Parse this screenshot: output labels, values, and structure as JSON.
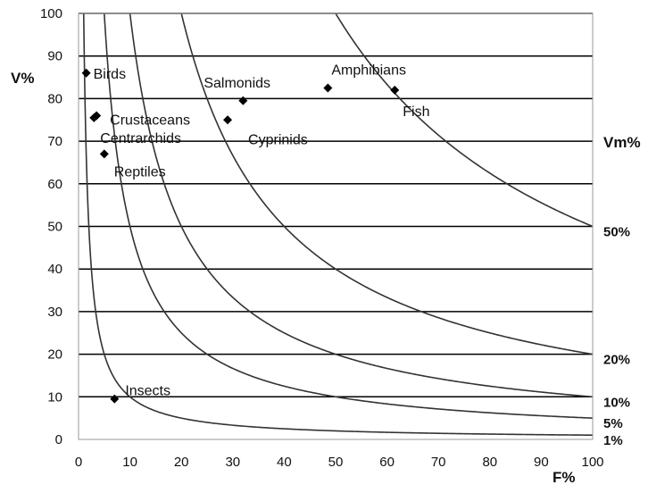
{
  "chart_data": {
    "type": "scatter",
    "xlabel": "F%",
    "ylabel": "V%",
    "right_label": "Vm%",
    "xlim": [
      0,
      100
    ],
    "ylim": [
      0,
      100
    ],
    "x_ticks": [
      0,
      10,
      20,
      30,
      40,
      50,
      60,
      70,
      80,
      90,
      100
    ],
    "y_ticks": [
      0,
      10,
      20,
      30,
      40,
      50,
      60,
      70,
      80,
      90,
      100
    ],
    "grid": "horizontal",
    "curves": [
      {
        "label": "50%",
        "vm": 50
      },
      {
        "label": "20%",
        "vm": 20
      },
      {
        "label": "10%",
        "vm": 10
      },
      {
        "label": "5%",
        "vm": 5
      },
      {
        "label": "1%",
        "vm": 1
      }
    ],
    "points": [
      {
        "label": "Birds",
        "x": 1.5,
        "y": 86
      },
      {
        "label": "Crustaceans",
        "x": 3.5,
        "y": 76
      },
      {
        "label": "Centrarchids",
        "x": 3.0,
        "y": 75.5
      },
      {
        "label": "Reptiles",
        "x": 5.0,
        "y": 67
      },
      {
        "label": "Salmonids",
        "x": 32,
        "y": 79.5
      },
      {
        "label": "Cyprinids",
        "x": 29,
        "y": 75
      },
      {
        "label": "Amphibians",
        "x": 48.5,
        "y": 82.5
      },
      {
        "label": "Fish",
        "x": 61.5,
        "y": 82
      },
      {
        "label": "Insects",
        "x": 7,
        "y": 9.5
      }
    ]
  }
}
